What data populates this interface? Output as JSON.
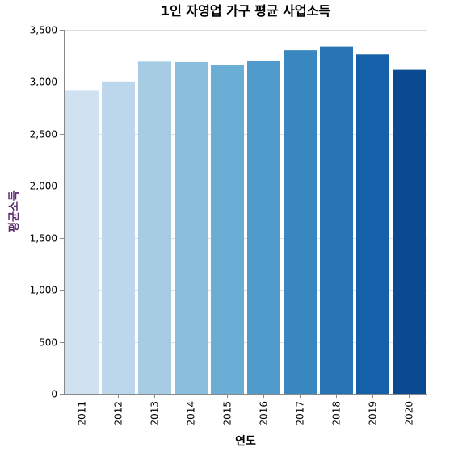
{
  "chart_data": {
    "type": "bar",
    "title": "1인 자영업 가구 평균 사업소득",
    "xlabel": "연도",
    "ylabel": "평균소득",
    "categories": [
      "2011",
      "2012",
      "2013",
      "2014",
      "2015",
      "2016",
      "2017",
      "2018",
      "2019",
      "2020"
    ],
    "values": [
      2915,
      3005,
      3195,
      3190,
      3165,
      3200,
      3305,
      3340,
      3265,
      3115
    ],
    "ylim": [
      0,
      3500
    ],
    "yticks": [
      0,
      500,
      1000,
      1500,
      2000,
      2500,
      3000,
      3500
    ],
    "ytick_labels": [
      "0",
      "500",
      "1,000",
      "1,500",
      "2,000",
      "2,500",
      "3,000",
      "3,500"
    ],
    "grid": true,
    "colors": [
      "#d0e1f2",
      "#bcd7eb",
      "#a5cce3",
      "#89bedc",
      "#6aaed6",
      "#4f9bcb",
      "#3987c0",
      "#2674b4",
      "#1561a9",
      "#0a4a90"
    ],
    "ylabel_color": "#5b2c6f"
  }
}
